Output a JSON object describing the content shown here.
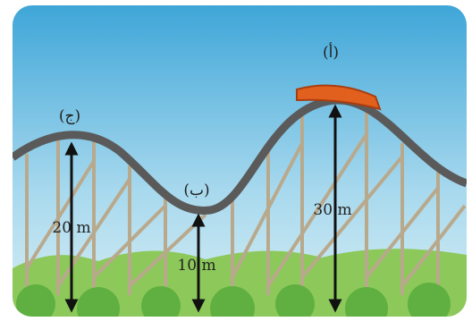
{
  "points": [
    {
      "label": "(ج)",
      "height": "20 m"
    },
    {
      "label": "(ب)",
      "height": "10 m"
    },
    {
      "label": "(أ)",
      "height": "30 m"
    }
  ]
}
